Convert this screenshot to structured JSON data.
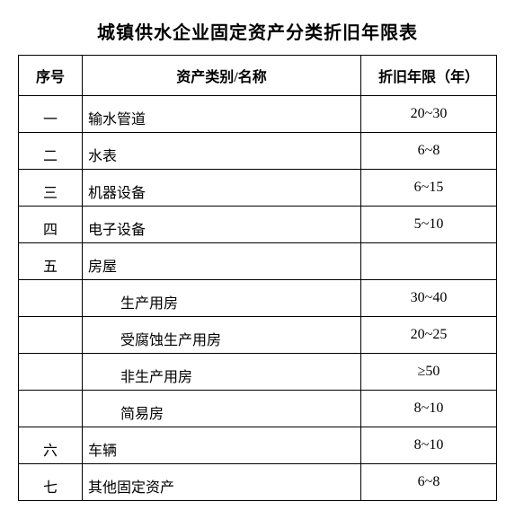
{
  "title": "城镇供水企业固定资产分类折旧年限表",
  "headers": {
    "seq": "序号",
    "name": "资产类别/名称",
    "years": "折旧年限（年）"
  },
  "rows": [
    {
      "seq": "一",
      "name": "输水管道",
      "years": "20~30",
      "indent": false
    },
    {
      "seq": "二",
      "name": "水表",
      "years": "6~8",
      "indent": false
    },
    {
      "seq": "三",
      "name": "机器设备",
      "years": "6~15",
      "indent": false
    },
    {
      "seq": "四",
      "name": "电子设备",
      "years": "5~10",
      "indent": false
    },
    {
      "seq": "五",
      "name": "房屋",
      "years": "",
      "indent": false
    },
    {
      "seq": "",
      "name": "生产用房",
      "years": "30~40",
      "indent": true
    },
    {
      "seq": "",
      "name": "受腐蚀生产用房",
      "years": "20~25",
      "indent": true
    },
    {
      "seq": "",
      "name": "非生产用房",
      "years": "≥50",
      "indent": true
    },
    {
      "seq": "",
      "name": "简易房",
      "years": "8~10",
      "indent": true
    },
    {
      "seq": "六",
      "name": "车辆",
      "years": "8~10",
      "indent": false
    },
    {
      "seq": "七",
      "name": "其他固定资产",
      "years": "6~8",
      "indent": false
    }
  ]
}
